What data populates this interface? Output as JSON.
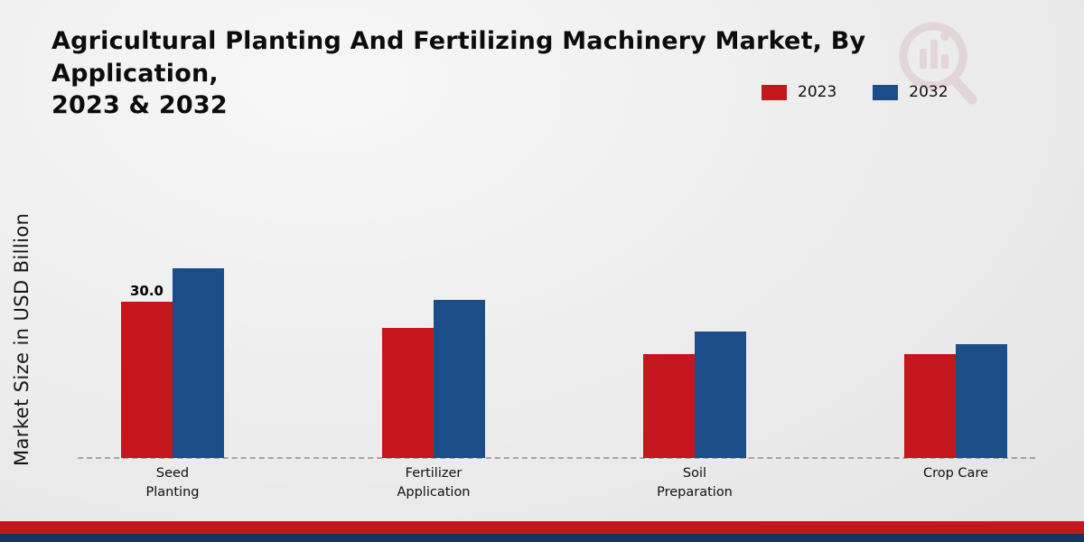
{
  "title": "Agricultural Planting And Fertilizing Machinery Market, By Application,\n2023 & 2032",
  "ylabel": "Market Size in USD Billion",
  "legend": [
    {
      "label": "2023",
      "color": "#c4161c"
    },
    {
      "label": "2032",
      "color": "#1b4e89"
    }
  ],
  "footer": {
    "red_strip_color": "#c4161c",
    "navy_strip_color": "#15365c"
  },
  "watermark_icon": "market-research-logo-icon",
  "chart_data": {
    "type": "bar",
    "title": "Agricultural Planting And Fertilizing Machinery Market, By Application, 2023 & 2032",
    "xlabel": "",
    "ylabel": "Market Size in USD Billion",
    "categories": [
      "Seed Planting",
      "Fertilizer Application",
      "Soil Preparation",
      "Crop Care"
    ],
    "category_lines": [
      [
        "Seed",
        "Planting"
      ],
      [
        "Fertilizer",
        "Application"
      ],
      [
        "Soil",
        "Preparation"
      ],
      [
        "Crop Care"
      ]
    ],
    "series": [
      {
        "name": "2023",
        "color": "#c4161c",
        "values": [
          30.0,
          25.0,
          20.0,
          20.0
        ]
      },
      {
        "name": "2032",
        "color": "#1b4e89",
        "values": [
          36.5,
          30.3,
          24.3,
          21.8
        ]
      }
    ],
    "annotations": [
      {
        "category_index": 0,
        "series_index": 0,
        "text": "30.0"
      }
    ],
    "ylim": [
      0,
      40
    ],
    "grid": false,
    "baseline": "dashed",
    "legend_position": "top-right"
  }
}
